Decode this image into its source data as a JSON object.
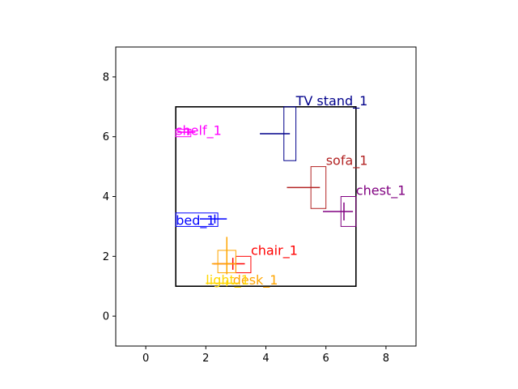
{
  "chart_data": {
    "type": "scatter",
    "title": "",
    "xlabel": "",
    "ylabel": "",
    "xlim": [
      -1,
      9
    ],
    "ylim": [
      -1,
      9
    ],
    "xticks": [
      "0",
      "2",
      "4",
      "6",
      "8"
    ],
    "yticks": [
      "0",
      "2",
      "4",
      "6",
      "8"
    ],
    "grid": false,
    "room": {
      "x0": 1,
      "y0": 1,
      "x1": 7,
      "y1": 7,
      "color": "#000000"
    },
    "objects": [
      {
        "name": "TV stand_1",
        "color": "#00008b",
        "x0": 4.6,
        "y0": 5.2,
        "x1": 5.0,
        "y1": 7.0,
        "cross": {
          "x0": 3.8,
          "x1": 4.8,
          "y0": 6.1,
          "y1": 6.1,
          "vx": 4.6,
          "vy0": 6.1,
          "vy1": 6.1
        },
        "label": {
          "x": 5.0,
          "y": 7.0
        }
      },
      {
        "name": "shelf_1",
        "color": "#ff00ff",
        "x0": 1.0,
        "y0": 6.0,
        "x1": 1.5,
        "y1": 6.25,
        "cross": {
          "x0": 1.05,
          "x1": 1.65,
          "y0": 6.15,
          "y1": 6.15,
          "vx": 1.4,
          "vy0": 6.05,
          "vy1": 6.25
        },
        "label": {
          "x": 1.0,
          "y": 6.0
        }
      },
      {
        "name": "sofa_1",
        "color": "#b22222",
        "x0": 5.5,
        "y0": 3.6,
        "x1": 6.0,
        "y1": 5.0,
        "cross": {
          "x0": 4.7,
          "x1": 5.8,
          "y0": 4.3,
          "y1": 4.3,
          "vx": 5.5,
          "vy0": 4.3,
          "vy1": 4.3
        },
        "label": {
          "x": 6.0,
          "y": 5.0
        }
      },
      {
        "name": "chest_1",
        "color": "#800080",
        "x0": 6.5,
        "y0": 3.0,
        "x1": 7.0,
        "y1": 4.0,
        "cross": {
          "x0": 5.9,
          "x1": 6.9,
          "y0": 3.5,
          "y1": 3.5,
          "vx": 6.6,
          "vy0": 3.2,
          "vy1": 3.8
        },
        "label": {
          "x": 7.0,
          "y": 4.0
        }
      },
      {
        "name": "bed_1",
        "color": "#0000ff",
        "x0": 1.0,
        "y0": 3.0,
        "x1": 2.4,
        "y1": 3.45,
        "cross": {
          "x0": 1.8,
          "x1": 2.7,
          "y0": 3.25,
          "y1": 3.25,
          "vx": 2.3,
          "vy0": 3.1,
          "vy1": 3.4
        },
        "label": {
          "x": 1.0,
          "y": 3.0
        }
      },
      {
        "name": "chair_1",
        "color": "#ff0000",
        "x0": 3.0,
        "y0": 1.45,
        "x1": 3.5,
        "y1": 2.0,
        "cross": {
          "x0": 2.25,
          "x1": 3.3,
          "y0": 1.75,
          "y1": 1.75,
          "vx": 2.9,
          "vy0": 1.55,
          "vy1": 1.95
        },
        "label": {
          "x": 3.5,
          "y": 2.0
        }
      },
      {
        "name": "desk_1",
        "color": "#ffa500",
        "x0": 2.4,
        "y0": 1.45,
        "x1": 3.0,
        "y1": 2.2,
        "cross": {
          "x0": 2.2,
          "x1": 3.0,
          "y0": 1.75,
          "y1": 1.75,
          "vx": 2.7,
          "vy0": 1.4,
          "vy1": 2.65
        },
        "label": {
          "x": 2.9,
          "y": 1.0
        }
      },
      {
        "name": "light_1",
        "color": "#ffd700",
        "x0": 2.0,
        "y0": 1.0,
        "x1": 2.0,
        "y1": 1.0,
        "cross": {
          "x0": 2.0,
          "x1": 3.1,
          "y0": 1.1,
          "y1": 1.1,
          "vx": 2.7,
          "vy0": 1.0,
          "vy1": 1.2
        },
        "label": {
          "x": 2.0,
          "y": 1.0
        }
      }
    ]
  }
}
